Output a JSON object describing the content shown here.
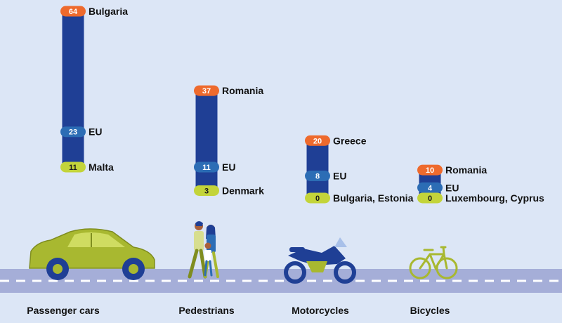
{
  "chart_data": {
    "type": "bar",
    "title": "",
    "ylabel": "",
    "colors": {
      "background": "#dce6f6",
      "bar": "#1f3f95",
      "max_marker": "#ee6a2d",
      "eu_marker": "#2c6db5",
      "min_marker": "#c3d43a",
      "road": "#a5aed8",
      "road_dash": "#ffffff",
      "vehicle_green": "#a8b830",
      "vehicle_blue": "#1f3f95"
    },
    "categories": [
      {
        "name": "Passenger cars",
        "icon": "car-icon",
        "markers": [
          {
            "kind": "max",
            "value": 64,
            "label": "Bulgaria"
          },
          {
            "kind": "eu",
            "value": 23,
            "label": "EU"
          },
          {
            "kind": "min",
            "value": 11,
            "label": "Malta"
          }
        ]
      },
      {
        "name": "Pedestrians",
        "icon": "pedestrians-icon",
        "markers": [
          {
            "kind": "max",
            "value": 37,
            "label": "Romania"
          },
          {
            "kind": "eu",
            "value": 11,
            "label": "EU"
          },
          {
            "kind": "min",
            "value": 3,
            "label": "Denmark"
          }
        ]
      },
      {
        "name": "Motorcycles",
        "icon": "motorcycle-icon",
        "markers": [
          {
            "kind": "max",
            "value": 20,
            "label": "Greece"
          },
          {
            "kind": "eu",
            "value": 8,
            "label": "EU"
          },
          {
            "kind": "min",
            "value": 0,
            "label": "Bulgaria, Estonia"
          }
        ]
      },
      {
        "name": "Bicycles",
        "icon": "bicycle-icon",
        "markers": [
          {
            "kind": "max",
            "value": 10,
            "label": "Romania"
          },
          {
            "kind": "eu",
            "value": 4,
            "label": "EU"
          },
          {
            "kind": "min",
            "value": 0,
            "label": "Luxembourg, Cyprus"
          }
        ]
      }
    ]
  }
}
